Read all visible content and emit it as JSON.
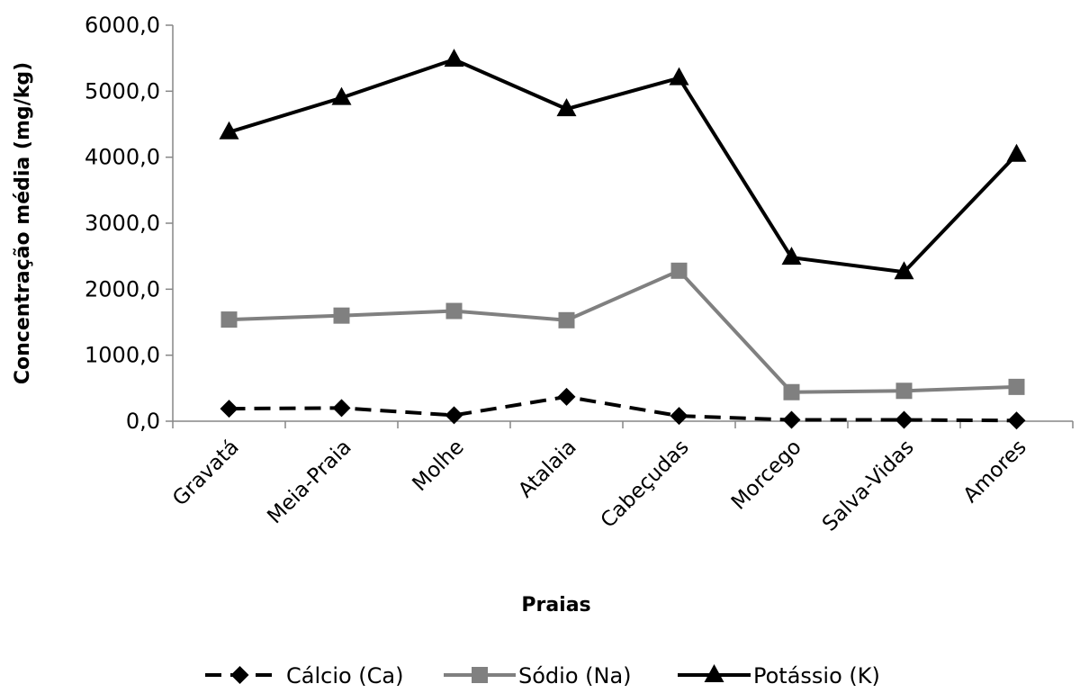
{
  "chart_data": {
    "type": "line",
    "xlabel": "Praias",
    "ylabel": "Concentração média (mg/kg)",
    "ylim": [
      0,
      6000
    ],
    "yticks": [
      0,
      1000,
      2000,
      3000,
      4000,
      5000,
      6000
    ],
    "ytick_labels": [
      "0,0",
      "1000,0",
      "2000,0",
      "3000,0",
      "4000,0",
      "5000,0",
      "6000,0"
    ],
    "categories": [
      "Gravatá",
      "Meia-Praia",
      "Molhe",
      "Atalaia",
      "Cabeçudas",
      "Morcego",
      "Salva-Vidas",
      "Amores"
    ],
    "legend_position": "bottom",
    "grid": false,
    "series": [
      {
        "name": "Cálcio (Ca)",
        "color": "#000000",
        "line_style": "dashed",
        "marker": "diamond",
        "values": [
          190,
          200,
          90,
          370,
          80,
          20,
          20,
          10
        ]
      },
      {
        "name": "Sódio (Na)",
        "color": "#808080",
        "line_style": "solid",
        "marker": "square",
        "values": [
          1540,
          1600,
          1670,
          1530,
          2280,
          440,
          460,
          520
        ]
      },
      {
        "name": "Potássio (K)",
        "color": "#000000",
        "line_style": "solid",
        "marker": "triangle",
        "values": [
          4380,
          4900,
          5480,
          4730,
          5200,
          2480,
          2260,
          4040
        ]
      }
    ]
  }
}
